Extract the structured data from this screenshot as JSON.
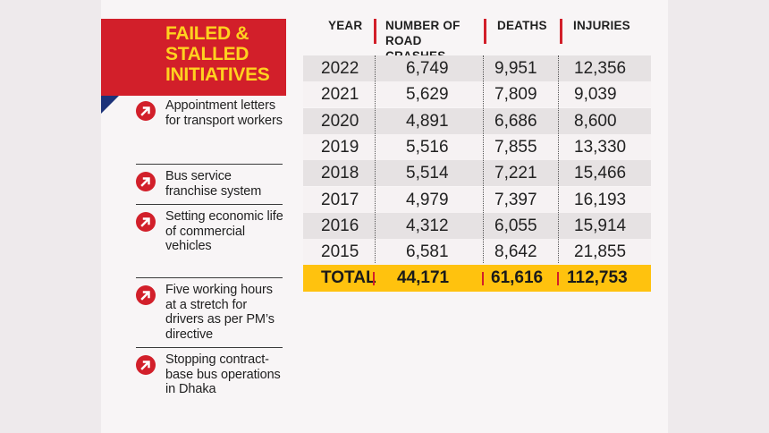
{
  "panel": {
    "title": "FAILED &\nSTALLED\nINITIATIVES",
    "items": [
      {
        "label": "Appointment letters for transport workers",
        "icon": "arrow-up-right-icon"
      },
      {
        "label": "Bus service franchise system",
        "icon": "arrow-up-right-icon"
      },
      {
        "label": "Setting economic life of commercial vehicles",
        "icon": "arrow-up-right-icon"
      },
      {
        "label": "Five working hours at a stretch for drivers as per PM’s directive",
        "icon": "arrow-up-right-icon"
      },
      {
        "label": "Stopping contract-base bus operations in Dhaka",
        "icon": "arrow-up-right-icon"
      }
    ]
  },
  "colors": {
    "accent_red": "#d21f2a",
    "banner_text_yellow": "#ffd21f",
    "total_row_yellow": "#ffc20e",
    "banner_fold_navy": "#1c3279"
  },
  "chart_data": {
    "type": "table",
    "columns": [
      "YEAR",
      "NUMBER OF\nROAD CRASHES",
      "DEATHS",
      "INJURIES"
    ],
    "rows": [
      {
        "year": "2022",
        "crashes": "6,749",
        "deaths": "9,951",
        "injuries": "12,356"
      },
      {
        "year": "2021",
        "crashes": "5,629",
        "deaths": "7,809",
        "injuries": "9,039"
      },
      {
        "year": "2020",
        "crashes": "4,891",
        "deaths": "6,686",
        "injuries": "8,600"
      },
      {
        "year": "2019",
        "crashes": "5,516",
        "deaths": "7,855",
        "injuries": "13,330"
      },
      {
        "year": "2018",
        "crashes": "5,514",
        "deaths": "7,221",
        "injuries": "15,466"
      },
      {
        "year": "2017",
        "crashes": "4,979",
        "deaths": "7,397",
        "injuries": "16,193"
      },
      {
        "year": "2016",
        "crashes": "4,312",
        "deaths": "6,055",
        "injuries": "15,914"
      },
      {
        "year": "2015",
        "crashes": "6,581",
        "deaths": "8,642",
        "injuries": "21,855"
      }
    ],
    "total": {
      "label": "TOTAL",
      "crashes": "44,171",
      "deaths": "61,616",
      "injuries": "112,753"
    }
  }
}
